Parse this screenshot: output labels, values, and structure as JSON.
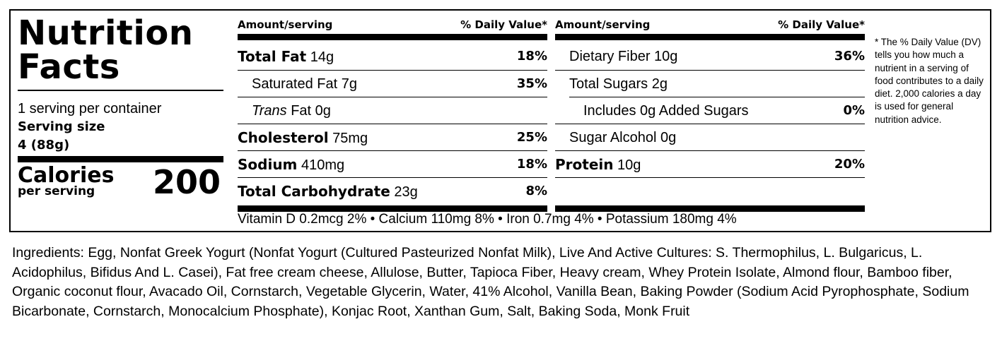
{
  "label": {
    "title_line1": "Nutrition",
    "title_line2": "Facts",
    "servings_per_container": "1 serving per container",
    "serving_size_label": "Serving size",
    "serving_size_value": "4 (88g)",
    "calories_label": "Calories",
    "per_serving_label": "per serving",
    "calories_value": "200",
    "header_amount": "Amount/serving",
    "header_dv": "% Daily Value*",
    "left_rows": [
      {
        "name": "Total Fat",
        "amount": "14g",
        "dv": "18%"
      },
      {
        "name": "Saturated Fat",
        "amount": "7g",
        "dv": "35%"
      },
      {
        "name": "Trans",
        "amount": "Fat 0g",
        "dv": ""
      },
      {
        "name": "Cholesterol",
        "amount": "75mg",
        "dv": "25%"
      },
      {
        "name": "Sodium",
        "amount": "410mg",
        "dv": "18%"
      },
      {
        "name": "Total Carbohydrate",
        "amount": "23g",
        "dv": "8%"
      }
    ],
    "right_rows": [
      {
        "name": "Dietary Fiber",
        "amount": "10g",
        "dv": "36%"
      },
      {
        "name": "Total Sugars",
        "amount": "2g",
        "dv": ""
      },
      {
        "name": "Includes 0g Added Sugars",
        "amount": "",
        "dv": "0%"
      },
      {
        "name": "Sugar Alcohol",
        "amount": "0g",
        "dv": ""
      },
      {
        "name": "Protein",
        "amount": "10g",
        "dv": "20%"
      }
    ],
    "vitamins_line": "Vitamin D 0.2mcg 2% • Calcium 110mg 8% • Iron 0.7mg 4% • Potassium 180mg 4%",
    "footnote": "* The % Daily Value (DV) tells you how much a nutrient in a serving of food contributes to a daily diet. 2,000 calories a day is used for general nutrition advice."
  },
  "ingredients": "Ingredients: Egg, Nonfat Greek Yogurt (Nonfat Yogurt (Cultured Pasteurized Nonfat Milk), Live And Active Cultures: S. Thermophilus, L. Bulgaricus, L. Acidophilus, Bifidus And L. Casei), Fat free cream cheese, Allulose, Butter, Tapioca Fiber, Heavy cream, Whey Protein Isolate, Almond flour, Bamboo fiber, Organic coconut flour, Avacado Oil, Cornstarch, Vegetable Glycerin, Water, 41% Alcohol, Vanilla Bean, Baking Powder (Sodium Acid Pyrophosphate, Sodium Bicarbonate, Cornstarch, Monocalcium Phosphate), Konjac Root, Xanthan Gum, Salt, Baking Soda, Monk Fruit"
}
